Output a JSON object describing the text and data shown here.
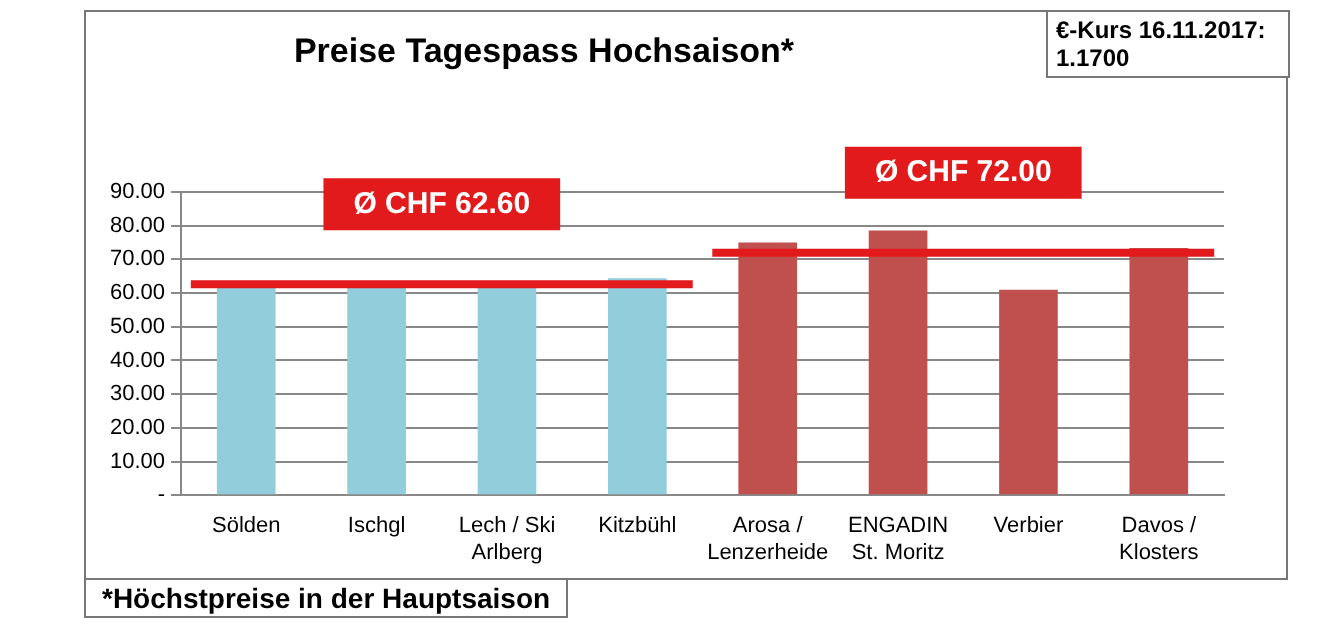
{
  "chart_data": {
    "type": "bar",
    "title": "Preise Tagespass Hochsaison*",
    "categories": [
      "Sölden",
      "Ischgl",
      "Lech / Ski Arlberg",
      "Kitzbühl",
      "Arosa / Lenzerheide",
      "ENGADIN St. Moritz",
      "Verbier",
      "Davos / Klosters"
    ],
    "values": [
      62,
      62,
      62,
      64.4,
      75,
      78.6,
      61,
      73.4
    ],
    "colors": [
      "#92cddc",
      "#92cddc",
      "#92cddc",
      "#92cddc",
      "#c0504d",
      "#c0504d",
      "#c0504d",
      "#c0504d"
    ],
    "ylim": [
      0,
      90
    ],
    "yticks": [
      {
        "value": 0,
        "label": "-"
      },
      {
        "value": 10,
        "label": "10.00"
      },
      {
        "value": 20,
        "label": "20.00"
      },
      {
        "value": 30,
        "label": "30.00"
      },
      {
        "value": 40,
        "label": "40.00"
      },
      {
        "value": 50,
        "label": "50.00"
      },
      {
        "value": 60,
        "label": "60.00"
      },
      {
        "value": 70,
        "label": "70.00"
      },
      {
        "value": 80,
        "label": "80.00"
      },
      {
        "value": 90,
        "label": "90.00"
      }
    ],
    "grid": "y",
    "legend": false,
    "ref_lines": [
      {
        "axis": "y",
        "value": 62.6,
        "label": "Ø CHF 62.60",
        "color": "#e31a1c"
      },
      {
        "axis": "y",
        "value": 72,
        "label": "Ø CHF 72.00",
        "color": "#e31a1c"
      }
    ],
    "annotations": [
      "€-Kurs 16.11.2017: 1.1700",
      "*Höchstpreise in der Hauptsaison"
    ]
  }
}
